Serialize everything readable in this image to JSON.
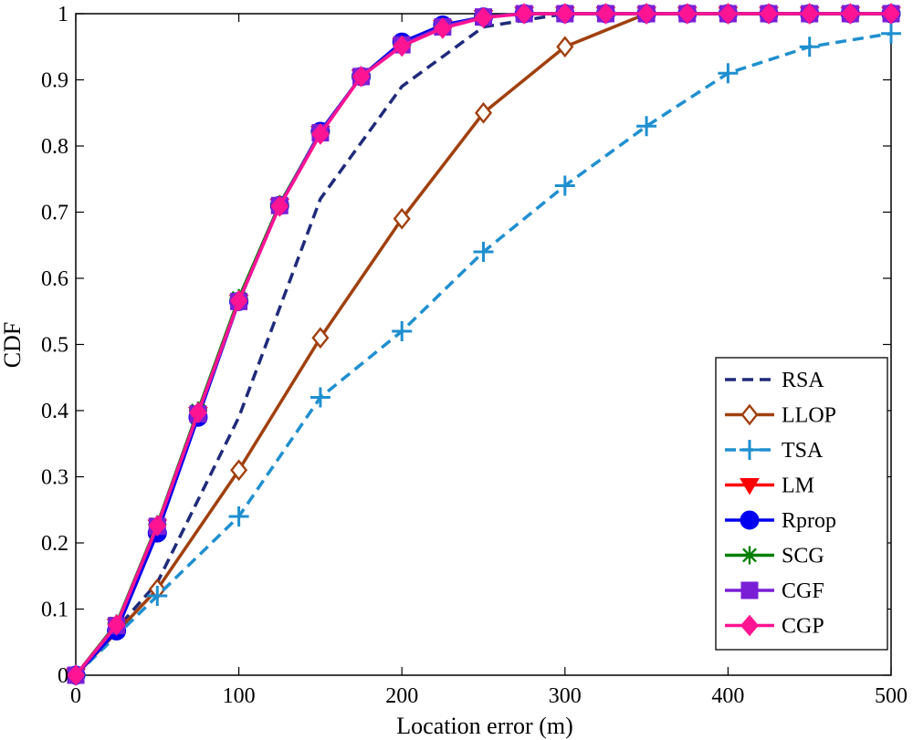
{
  "chart_data": {
    "type": "line",
    "title": "",
    "xlabel": "Location error (m)",
    "ylabel": "CDF",
    "xlim": [
      0,
      500
    ],
    "ylim": [
      0,
      1
    ],
    "x_ticks": [
      0,
      100,
      200,
      300,
      400,
      500
    ],
    "x_tick_labels": [
      "0",
      "100",
      "200",
      "300",
      "400",
      "500"
    ],
    "y_ticks": [
      0,
      0.1,
      0.2,
      0.3,
      0.4,
      0.5,
      0.6,
      0.7,
      0.8,
      0.9,
      1
    ],
    "y_tick_labels": [
      "0",
      "0.1",
      "0.2",
      "0.3",
      "0.4",
      "0.5",
      "0.6",
      "0.7",
      "0.8",
      "0.9",
      "1"
    ],
    "grid": false,
    "legend_position": "bottom-right",
    "series": [
      {
        "name": "RSA",
        "color": "#1f2a7a",
        "dash": "dash",
        "marker": "none",
        "x": [
          0,
          25,
          50,
          100,
          150,
          200,
          250,
          275,
          300,
          350,
          400,
          450,
          500
        ],
        "y": [
          0,
          0.07,
          0.14,
          0.39,
          0.72,
          0.89,
          0.98,
          0.99,
          1.0,
          1.0,
          1.0,
          1.0,
          1.0
        ]
      },
      {
        "name": "LLOP",
        "color": "#a0400e",
        "dash": "solid",
        "marker": "diamond-open",
        "x": [
          0,
          50,
          100,
          150,
          200,
          250,
          300,
          350,
          400,
          450,
          500
        ],
        "y": [
          0,
          0.13,
          0.31,
          0.51,
          0.69,
          0.85,
          0.95,
          1.0,
          1.0,
          1.0,
          1.0
        ]
      },
      {
        "name": "TSA",
        "color": "#1f8fcf",
        "dash": "dash",
        "marker": "plus",
        "x": [
          0,
          50,
          100,
          150,
          200,
          250,
          300,
          350,
          400,
          450,
          500
        ],
        "y": [
          0,
          0.12,
          0.24,
          0.42,
          0.52,
          0.64,
          0.74,
          0.83,
          0.91,
          0.95,
          0.97
        ]
      },
      {
        "name": "LM",
        "color": "#ff0000",
        "dash": "solid",
        "marker": "triangle-down",
        "x": [
          0,
          25,
          50,
          75,
          100,
          125,
          150,
          175,
          200,
          225,
          250,
          275,
          300,
          325,
          350,
          375,
          400,
          425,
          450,
          475,
          500
        ],
        "y": [
          0,
          0.075,
          0.225,
          0.395,
          0.565,
          0.71,
          0.82,
          0.905,
          0.953,
          0.98,
          0.995,
          1.0,
          1.0,
          1.0,
          1.0,
          1.0,
          1.0,
          1.0,
          1.0,
          1.0,
          1.0
        ]
      },
      {
        "name": "Rprop",
        "color": "#0000ee",
        "dash": "solid",
        "marker": "circle",
        "x": [
          0,
          25,
          50,
          75,
          100,
          125,
          150,
          175,
          200,
          225,
          250,
          275,
          300,
          325,
          350,
          375,
          400,
          425,
          450,
          475,
          500
        ],
        "y": [
          0,
          0.067,
          0.215,
          0.39,
          0.565,
          0.71,
          0.822,
          0.905,
          0.957,
          0.983,
          0.995,
          1.0,
          1.0,
          1.0,
          1.0,
          1.0,
          1.0,
          1.0,
          1.0,
          1.0,
          1.0
        ]
      },
      {
        "name": "SCG",
        "color": "#007f00",
        "dash": "solid",
        "marker": "asterisk",
        "x": [
          0,
          25,
          50,
          75,
          100,
          125,
          150,
          175,
          200,
          225,
          250,
          275,
          300,
          325,
          350,
          375,
          400,
          425,
          450,
          475,
          500
        ],
        "y": [
          0,
          0.078,
          0.228,
          0.4,
          0.57,
          0.712,
          0.82,
          0.905,
          0.953,
          0.98,
          0.995,
          1.0,
          1.0,
          1.0,
          1.0,
          1.0,
          1.0,
          1.0,
          1.0,
          1.0,
          1.0
        ]
      },
      {
        "name": "CGF",
        "color": "#7a1fd6",
        "dash": "solid",
        "marker": "square",
        "x": [
          0,
          25,
          50,
          75,
          100,
          125,
          150,
          175,
          200,
          225,
          250,
          275,
          300,
          325,
          350,
          375,
          400,
          425,
          450,
          475,
          500
        ],
        "y": [
          0,
          0.075,
          0.225,
          0.395,
          0.565,
          0.71,
          0.82,
          0.905,
          0.953,
          0.98,
          0.995,
          1.0,
          1.0,
          1.0,
          1.0,
          1.0,
          1.0,
          1.0,
          1.0,
          1.0,
          1.0
        ]
      },
      {
        "name": "CGP",
        "color": "#ff1493",
        "dash": "solid",
        "marker": "diamond",
        "x": [
          0,
          25,
          50,
          75,
          100,
          125,
          150,
          175,
          200,
          225,
          250,
          275,
          300,
          325,
          350,
          375,
          400,
          425,
          450,
          475,
          500
        ],
        "y": [
          0,
          0.076,
          0.226,
          0.397,
          0.566,
          0.709,
          0.818,
          0.905,
          0.951,
          0.978,
          0.994,
          1.0,
          1.0,
          1.0,
          1.0,
          1.0,
          1.0,
          1.0,
          1.0,
          1.0,
          1.0
        ]
      }
    ]
  }
}
